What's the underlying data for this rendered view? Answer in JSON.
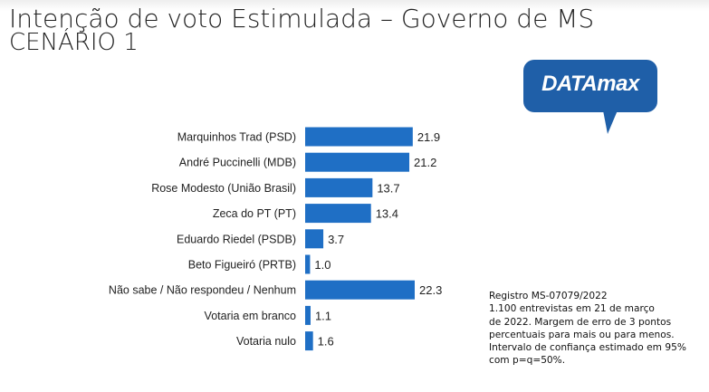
{
  "title": {
    "line1": "Intenção de voto Estimulada – Governo de MS",
    "line2": "CENÁRIO 1"
  },
  "logo": {
    "text": "DATAmax"
  },
  "colors": {
    "bar": "#1f6fc5",
    "logo": "#1f5fa8",
    "text": "#222222"
  },
  "chart_data": {
    "type": "bar",
    "orientation": "horizontal",
    "categories": [
      "Marquinhos Trad (PSD)",
      "André Puccinelli (MDB)",
      "Rose Modesto (União Brasil)",
      "Zeca do PT (PT)",
      "Eduardo Riedel (PSDB)",
      "Beto Figueiró (PRTB)",
      "Não sabe / Não respondeu / Nenhum",
      "Votaria em branco",
      "Votaria nulo"
    ],
    "values": [
      21.9,
      21.2,
      13.7,
      13.4,
      3.7,
      1.0,
      22.3,
      1.1,
      1.6
    ],
    "value_labels": [
      "21.9",
      "21.2",
      "13.7",
      "13.4",
      "3.7",
      "1.0",
      "22.3",
      "1.1",
      "1.6"
    ],
    "title": "",
    "xlabel": "",
    "ylabel": "",
    "xlim": [
      0,
      22.3
    ],
    "grid": false,
    "legend": "none"
  },
  "note": {
    "lines": [
      "Registro MS-07079/2022",
      "1.100 entrevistas  em 21 de março",
      "de 2022. Margem de erro de 3 pontos",
      "percentuais para mais ou para menos.",
      "Intervalo de confiança estimado em 95%",
      "com p=q=50%."
    ]
  }
}
